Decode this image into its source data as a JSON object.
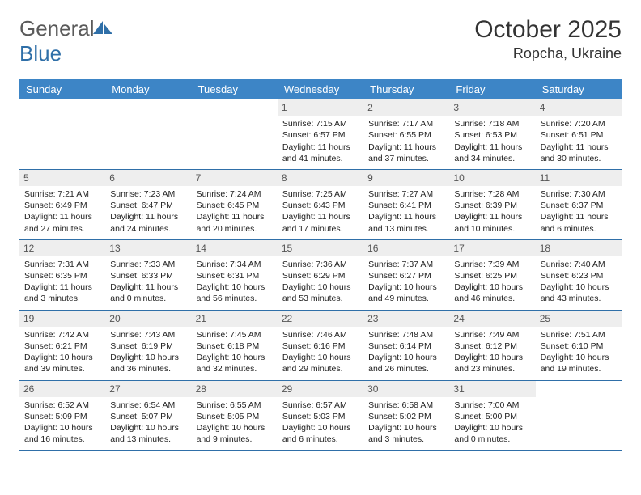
{
  "logo": {
    "text_general": "General",
    "text_blue": "Blue"
  },
  "title": "October 2025",
  "location": "Ropcha, Ukraine",
  "colors": {
    "header_bg": "#3d85c6",
    "border": "#2f6fa8",
    "daynum_bg": "#eeeeee",
    "text": "#222222",
    "logo_gray": "#5a5a5a",
    "logo_blue": "#2f6fa8"
  },
  "weekdays": [
    "Sunday",
    "Monday",
    "Tuesday",
    "Wednesday",
    "Thursday",
    "Friday",
    "Saturday"
  ],
  "weeks": [
    [
      null,
      null,
      null,
      {
        "d": "1",
        "sunrise": "7:15 AM",
        "sunset": "6:57 PM",
        "day_h": 11,
        "day_m": 41
      },
      {
        "d": "2",
        "sunrise": "7:17 AM",
        "sunset": "6:55 PM",
        "day_h": 11,
        "day_m": 37
      },
      {
        "d": "3",
        "sunrise": "7:18 AM",
        "sunset": "6:53 PM",
        "day_h": 11,
        "day_m": 34
      },
      {
        "d": "4",
        "sunrise": "7:20 AM",
        "sunset": "6:51 PM",
        "day_h": 11,
        "day_m": 30
      }
    ],
    [
      {
        "d": "5",
        "sunrise": "7:21 AM",
        "sunset": "6:49 PM",
        "day_h": 11,
        "day_m": 27
      },
      {
        "d": "6",
        "sunrise": "7:23 AM",
        "sunset": "6:47 PM",
        "day_h": 11,
        "day_m": 24
      },
      {
        "d": "7",
        "sunrise": "7:24 AM",
        "sunset": "6:45 PM",
        "day_h": 11,
        "day_m": 20
      },
      {
        "d": "8",
        "sunrise": "7:25 AM",
        "sunset": "6:43 PM",
        "day_h": 11,
        "day_m": 17
      },
      {
        "d": "9",
        "sunrise": "7:27 AM",
        "sunset": "6:41 PM",
        "day_h": 11,
        "day_m": 13
      },
      {
        "d": "10",
        "sunrise": "7:28 AM",
        "sunset": "6:39 PM",
        "day_h": 11,
        "day_m": 10
      },
      {
        "d": "11",
        "sunrise": "7:30 AM",
        "sunset": "6:37 PM",
        "day_h": 11,
        "day_m": 6
      }
    ],
    [
      {
        "d": "12",
        "sunrise": "7:31 AM",
        "sunset": "6:35 PM",
        "day_h": 11,
        "day_m": 3
      },
      {
        "d": "13",
        "sunrise": "7:33 AM",
        "sunset": "6:33 PM",
        "day_h": 11,
        "day_m": 0
      },
      {
        "d": "14",
        "sunrise": "7:34 AM",
        "sunset": "6:31 PM",
        "day_h": 10,
        "day_m": 56
      },
      {
        "d": "15",
        "sunrise": "7:36 AM",
        "sunset": "6:29 PM",
        "day_h": 10,
        "day_m": 53
      },
      {
        "d": "16",
        "sunrise": "7:37 AM",
        "sunset": "6:27 PM",
        "day_h": 10,
        "day_m": 49
      },
      {
        "d": "17",
        "sunrise": "7:39 AM",
        "sunset": "6:25 PM",
        "day_h": 10,
        "day_m": 46
      },
      {
        "d": "18",
        "sunrise": "7:40 AM",
        "sunset": "6:23 PM",
        "day_h": 10,
        "day_m": 43
      }
    ],
    [
      {
        "d": "19",
        "sunrise": "7:42 AM",
        "sunset": "6:21 PM",
        "day_h": 10,
        "day_m": 39
      },
      {
        "d": "20",
        "sunrise": "7:43 AM",
        "sunset": "6:19 PM",
        "day_h": 10,
        "day_m": 36
      },
      {
        "d": "21",
        "sunrise": "7:45 AM",
        "sunset": "6:18 PM",
        "day_h": 10,
        "day_m": 32
      },
      {
        "d": "22",
        "sunrise": "7:46 AM",
        "sunset": "6:16 PM",
        "day_h": 10,
        "day_m": 29
      },
      {
        "d": "23",
        "sunrise": "7:48 AM",
        "sunset": "6:14 PM",
        "day_h": 10,
        "day_m": 26
      },
      {
        "d": "24",
        "sunrise": "7:49 AM",
        "sunset": "6:12 PM",
        "day_h": 10,
        "day_m": 23
      },
      {
        "d": "25",
        "sunrise": "7:51 AM",
        "sunset": "6:10 PM",
        "day_h": 10,
        "day_m": 19
      }
    ],
    [
      {
        "d": "26",
        "sunrise": "6:52 AM",
        "sunset": "5:09 PM",
        "day_h": 10,
        "day_m": 16
      },
      {
        "d": "27",
        "sunrise": "6:54 AM",
        "sunset": "5:07 PM",
        "day_h": 10,
        "day_m": 13
      },
      {
        "d": "28",
        "sunrise": "6:55 AM",
        "sunset": "5:05 PM",
        "day_h": 10,
        "day_m": 9
      },
      {
        "d": "29",
        "sunrise": "6:57 AM",
        "sunset": "5:03 PM",
        "day_h": 10,
        "day_m": 6
      },
      {
        "d": "30",
        "sunrise": "6:58 AM",
        "sunset": "5:02 PM",
        "day_h": 10,
        "day_m": 3
      },
      {
        "d": "31",
        "sunrise": "7:00 AM",
        "sunset": "5:00 PM",
        "day_h": 10,
        "day_m": 0
      },
      null
    ]
  ]
}
